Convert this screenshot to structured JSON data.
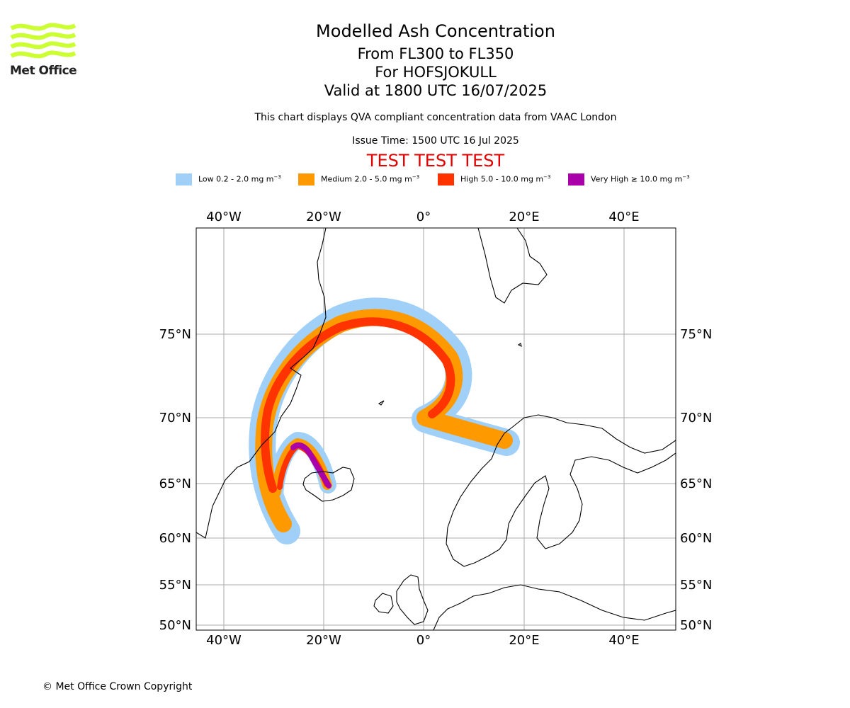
{
  "header": {
    "title": "Modelled Ash Concentration",
    "flight_levels": "From FL300 to FL350",
    "volcano": "For HOFSJOKULL",
    "valid": "Valid at 1800 UTC 16/07/2025",
    "note": "This chart displays QVA compliant concentration data from VAAC London",
    "issue": "Issue Time: 1500 UTC 16 Jul 2025",
    "test_banner": "TEST TEST TEST"
  },
  "logo": {
    "text": "Met Office",
    "color": "#ccff33"
  },
  "legend": [
    {
      "label": "Low 0.2 - 2.0 mg m",
      "sup": "−3",
      "color": "#a0d0f8"
    },
    {
      "label": "Medium 2.0 - 5.0 mg m",
      "sup": "−3",
      "color": "#ff9900"
    },
    {
      "label": "High 5.0 - 10.0 mg m",
      "sup": "−3",
      "color": "#ff3300"
    },
    {
      "label": "Very High ≥ 10.0 mg m",
      "sup": "−3",
      "color": "#aa00aa"
    }
  ],
  "map": {
    "lon_labels": [
      "40°W",
      "20°W",
      "0°",
      "20°E",
      "40°E"
    ],
    "lat_labels": [
      "75°N",
      "70°N",
      "65°N",
      "60°N",
      "55°N",
      "50°N"
    ],
    "grid_color": "#aaaaaa"
  },
  "footer": {
    "copyright": "© Met Office Crown Copyright"
  }
}
